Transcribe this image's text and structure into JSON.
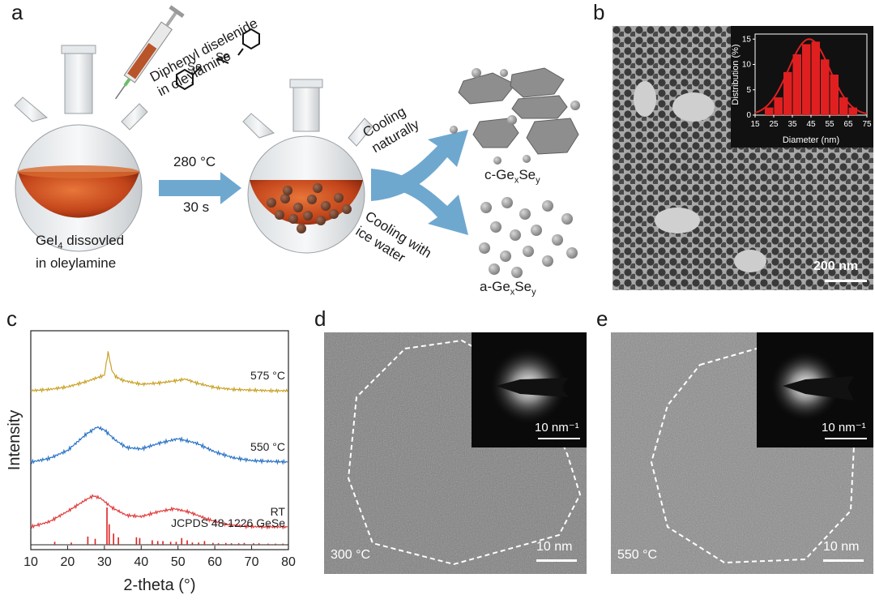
{
  "panel_labels": {
    "a": "a",
    "b": "b",
    "c": "c",
    "d": "d",
    "e": "e"
  },
  "panel_a": {
    "reagent_line1": "Diphenyl diselenide",
    "reagent_line2": "in oleylamine",
    "se_left": "Se",
    "se_right": "Se",
    "flask_label_line1": "GeI",
    "flask_label_sub": "4",
    "flask_label_rest": " dissovled",
    "flask_label_line2": "in oleylamine",
    "condition_temp": "280 °C",
    "condition_time": "30 s",
    "upper_route_line1": "Cooling",
    "upper_route_line2": "naturally",
    "lower_route_line1": "Cooling with",
    "lower_route_line2": "ice water",
    "product_crystalline": {
      "prefix": "c-Ge",
      "sub_x": "x",
      "mid": "Se",
      "sub_y": "y"
    },
    "product_amorphous": {
      "prefix": "a-Ge",
      "sub_x": "x",
      "mid": "Se",
      "sub_y": "y"
    }
  },
  "panel_b": {
    "scale_bar_label": "200 nm",
    "inset_histogram": {
      "type": "bar",
      "xlabel": "Diameter (nm)",
      "ylabel": "Distribution (%)",
      "x_ticks": [
        "15",
        "25",
        "35",
        "45",
        "55",
        "65",
        "75"
      ],
      "y_ticks": [
        "0",
        "5",
        "10",
        "15"
      ],
      "xlim": [
        15,
        75
      ],
      "ylim": [
        0,
        16
      ],
      "bin_centers": [
        22.5,
        27.5,
        32.5,
        37.5,
        42.5,
        47.5,
        52.5,
        57.5,
        62.5,
        67.5
      ],
      "values": [
        1.5,
        3.5,
        8.5,
        12,
        14,
        14.5,
        11,
        8,
        3.5,
        1.5
      ],
      "fit_curve": "gaussian",
      "fit_mean": 44,
      "fit_peak": 15,
      "bar_color": "#e02020"
    }
  },
  "chart_data": {
    "type": "line",
    "title": "",
    "xlabel": "2-theta (°)",
    "ylabel": "Intensity",
    "xlim": [
      10,
      80
    ],
    "x_ticks": [
      "10",
      "20",
      "30",
      "40",
      "50",
      "60",
      "70",
      "80"
    ],
    "series": [
      {
        "name": "575 °C",
        "color": "#c9a227",
        "x": [
          10,
          15,
          20,
          25,
          28,
          30,
          31,
          32,
          33,
          35,
          40,
          45,
          50,
          52,
          55,
          60,
          65,
          70,
          75,
          80
        ],
        "y": [
          0.2,
          0.22,
          0.26,
          0.34,
          0.4,
          0.44,
          0.8,
          0.52,
          0.42,
          0.36,
          0.3,
          0.32,
          0.36,
          0.38,
          0.32,
          0.25,
          0.22,
          0.21,
          0.2,
          0.2
        ]
      },
      {
        "name": "550 °C",
        "color": "#2a73c6",
        "x": [
          10,
          15,
          20,
          25,
          28,
          30,
          33,
          36,
          40,
          45,
          50,
          55,
          60,
          65,
          70,
          75,
          80
        ],
        "y": [
          0.2,
          0.25,
          0.36,
          0.58,
          0.68,
          0.64,
          0.5,
          0.4,
          0.38,
          0.46,
          0.52,
          0.46,
          0.34,
          0.26,
          0.22,
          0.21,
          0.2
        ]
      },
      {
        "name": "RT",
        "color": "#e03a3a",
        "x": [
          10,
          15,
          20,
          25,
          27,
          29,
          32,
          36,
          40,
          45,
          49,
          53,
          58,
          63,
          68,
          73,
          80
        ],
        "y": [
          0.1,
          0.18,
          0.34,
          0.52,
          0.58,
          0.54,
          0.4,
          0.28,
          0.26,
          0.34,
          0.38,
          0.33,
          0.22,
          0.14,
          0.11,
          0.1,
          0.1
        ]
      }
    ],
    "reference": {
      "name": "JCPDS 48-1226 GeSe",
      "color": "#e02020",
      "positions": [
        16.5,
        21.0,
        25.5,
        27.5,
        30.7,
        31.3,
        32.5,
        33.8,
        38.7,
        39.6,
        43.0,
        44.5,
        45.9,
        48.0,
        49.5,
        51.0,
        52.5,
        53.9,
        55.6,
        57.2,
        59.5,
        61.0,
        63.0,
        64.5,
        66.5,
        68.0,
        70.5,
        72.0,
        74.5,
        76.5,
        78.5
      ],
      "intensities": [
        0.08,
        0.06,
        0.22,
        0.16,
        1.0,
        0.55,
        0.3,
        0.2,
        0.2,
        0.18,
        0.12,
        0.1,
        0.1,
        0.08,
        0.08,
        0.18,
        0.12,
        0.06,
        0.06,
        0.1,
        0.05,
        0.04,
        0.05,
        0.04,
        0.04,
        0.05,
        0.04,
        0.04,
        0.03,
        0.03,
        0.03
      ]
    }
  },
  "panel_d": {
    "temperature_label": "300 °C",
    "scale_bar_label": "10 nm",
    "inset_scale_label": "10 nm⁻¹"
  },
  "panel_e": {
    "temperature_label": "550 °C",
    "scale_bar_label": "10 nm",
    "inset_scale_label": "10 nm⁻¹"
  }
}
